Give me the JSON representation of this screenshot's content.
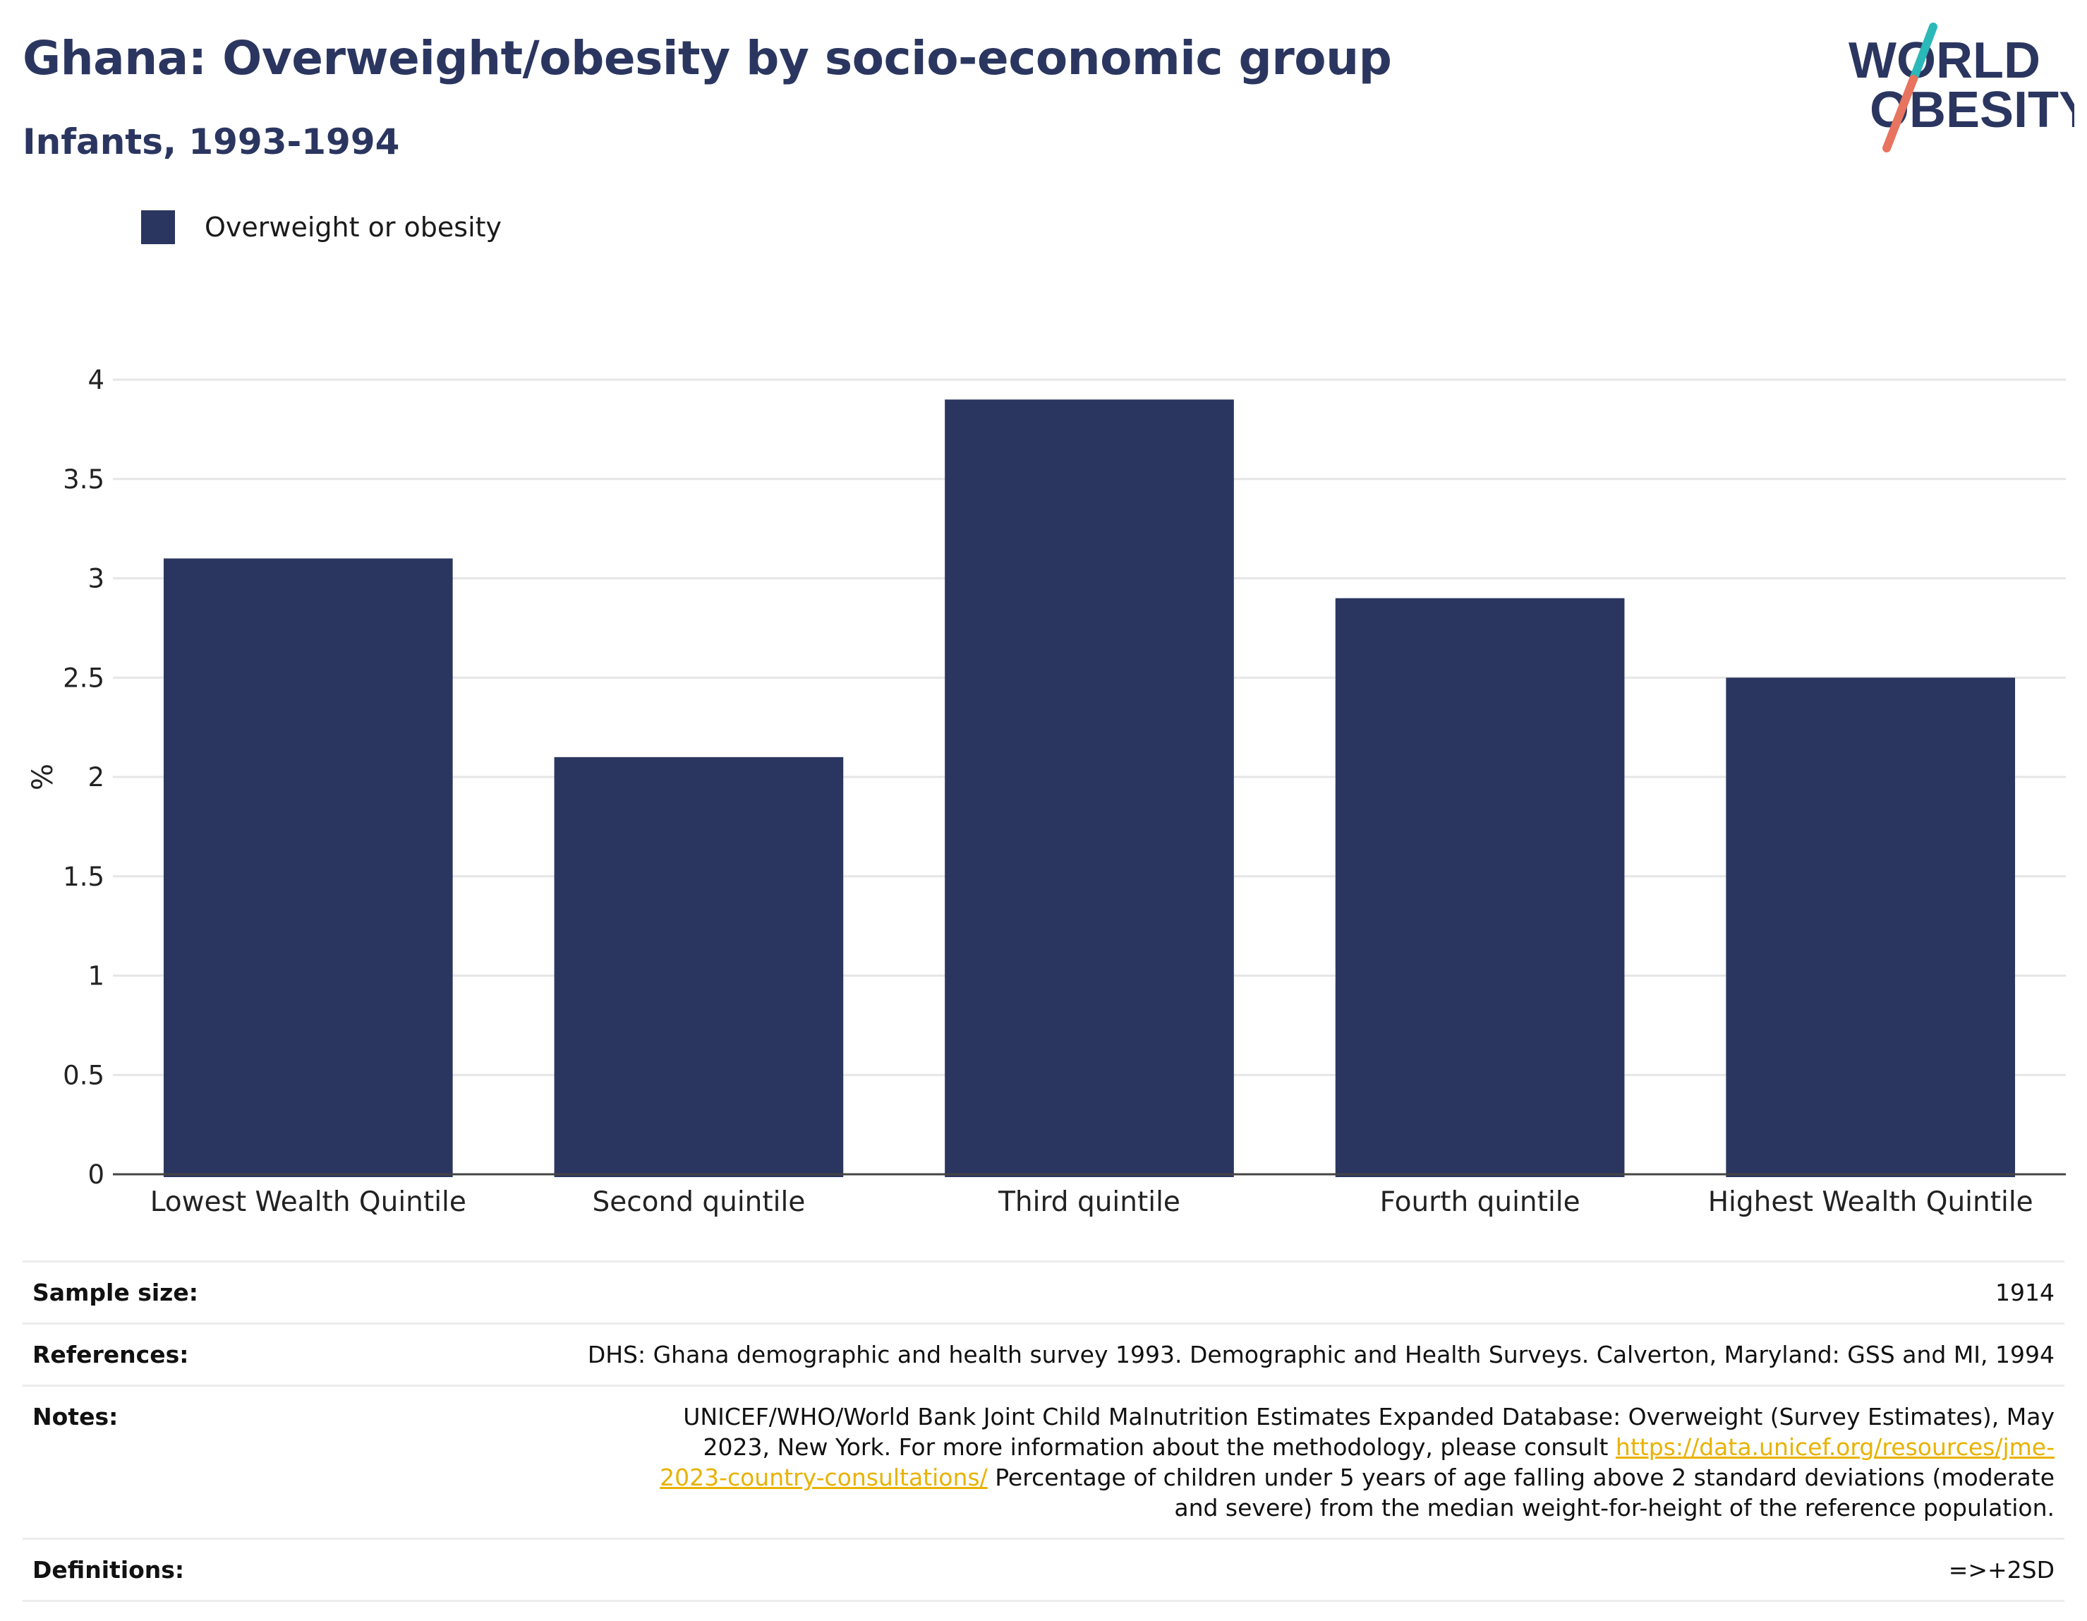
{
  "header": {
    "title": "Ghana: Overweight/obesity by socio-economic group",
    "subtitle": "Infants, 1993-1994"
  },
  "logo": {
    "line1": "WORLD",
    "line2": "OBESITY"
  },
  "colors": {
    "bar": "#2b3660",
    "title": "#2b3660",
    "grid": "#e6e6e6",
    "axis": "#444444",
    "link": "#e8b200",
    "logo_teal": "#2bb8b8",
    "logo_coral": "#e8735e"
  },
  "legend": {
    "label": "Overweight or obesity"
  },
  "chart_data": {
    "type": "bar",
    "categories": [
      "Lowest Wealth Quintile",
      "Second quintile",
      "Third quintile",
      "Fourth quintile",
      "Highest Wealth Quintile"
    ],
    "series": [
      {
        "name": "Overweight or obesity",
        "values": [
          3.1,
          2.1,
          3.9,
          2.9,
          2.5
        ]
      }
    ],
    "ylabel": "%",
    "ylim": [
      0,
      4
    ],
    "yticks": [
      0,
      0.5,
      1,
      1.5,
      2,
      2.5,
      3,
      3.5,
      4
    ],
    "ytick_labels": [
      "0",
      "0.5",
      "1",
      "1.5",
      "2",
      "2.5",
      "3",
      "3.5",
      "4"
    ],
    "grid": true,
    "legend_position": "top-left"
  },
  "meta": {
    "sample_size": {
      "label": "Sample size:",
      "value": "1914"
    },
    "references": {
      "label": "References:",
      "value": "DHS: Ghana demographic and health survey 1993. Demographic and Health Surveys. Calverton, Maryland: GSS and MI, 1994"
    },
    "notes": {
      "label": "Notes:",
      "text_before": "UNICEF/WHO/World Bank Joint Child Malnutrition Estimates Expanded Database: Overweight (Survey Estimates), May 2023, New York. For more information about the methodology, please consult ",
      "link": "https://data.unicef.org/resources/jme-2023-country-consultations/",
      "text_after": " Percentage of children under 5 years of age falling above 2 standard deviations (moderate and severe) from the median weight-for-height of the reference population."
    },
    "definitions": {
      "label": "Definitions:",
      "value": "=>+2SD"
    }
  }
}
